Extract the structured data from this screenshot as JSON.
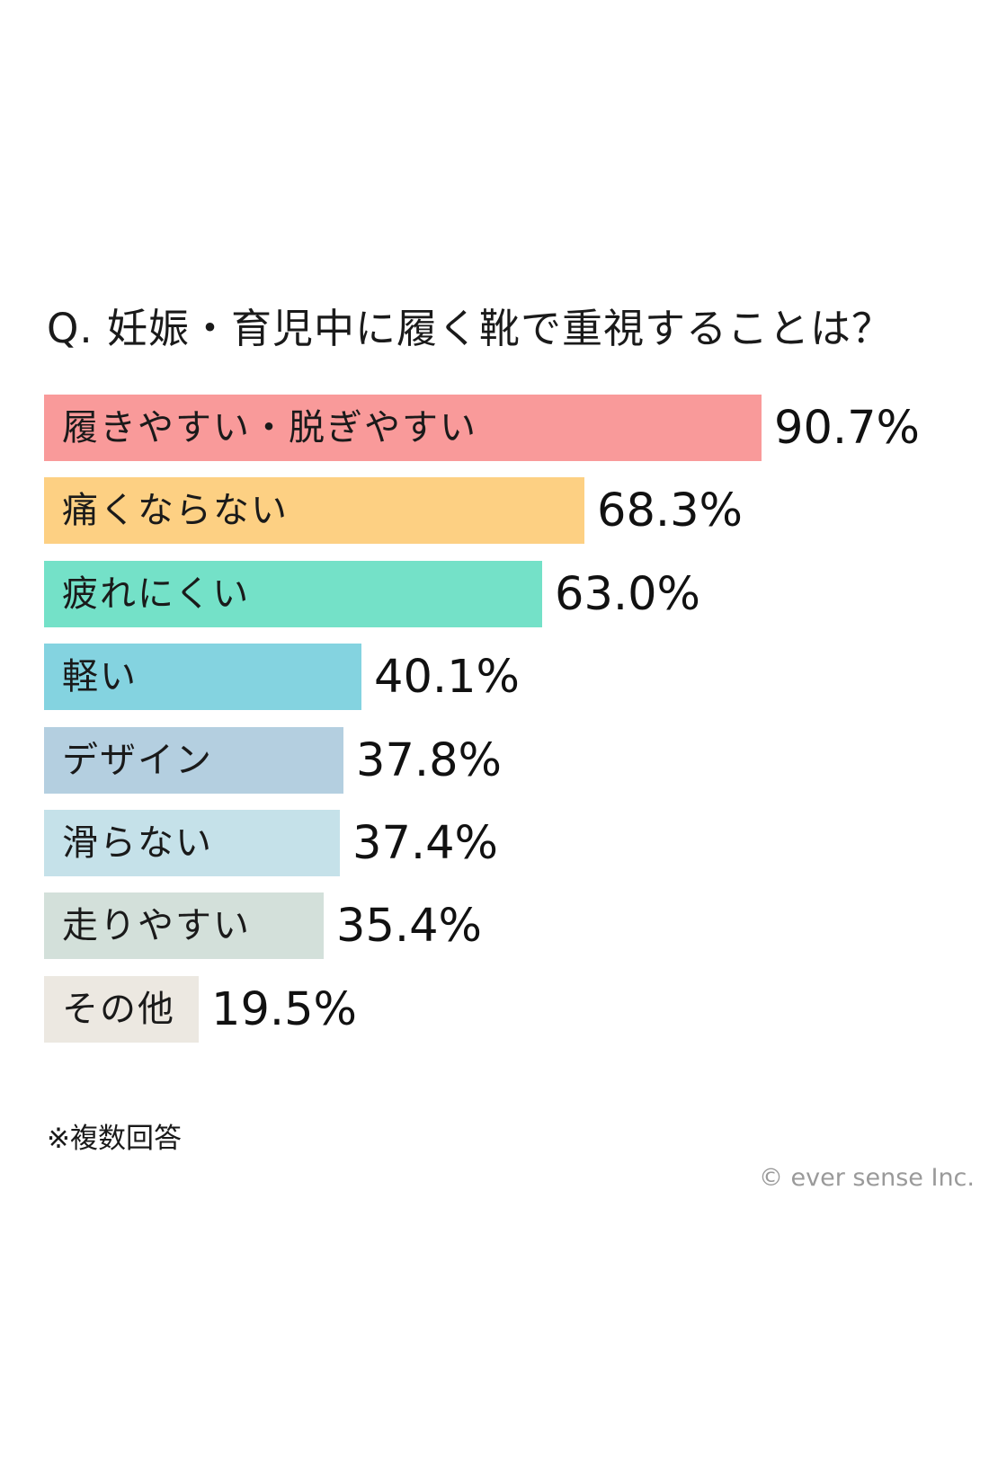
{
  "chart_data": {
    "type": "bar",
    "orientation": "horizontal",
    "title": "Q. 妊娠・育児中に履く靴で重視することは？",
    "categories": [
      "履きやすい・脱ぎやすい",
      "痛くならない",
      "疲れにくい",
      "軽い",
      "デザイン",
      "滑らない",
      "走りやすい",
      "その他"
    ],
    "values": [
      90.7,
      68.3,
      63.0,
      40.1,
      37.8,
      37.4,
      35.4,
      19.5
    ],
    "value_labels": [
      "90.7%",
      "68.3%",
      "63.0%",
      "40.1%",
      "37.8%",
      "37.4%",
      "35.4%",
      "19.5%"
    ],
    "colors": [
      "#f99a9a",
      "#fdd083",
      "#74e1c8",
      "#84d3e0",
      "#b4cfe0",
      "#c5e1e9",
      "#d3e0da",
      "#ece8e1"
    ],
    "xlim": [
      0,
      100
    ],
    "grid": false,
    "legend": "none"
  },
  "footnote": "※複数回答",
  "copyright": "© ever sense Inc."
}
